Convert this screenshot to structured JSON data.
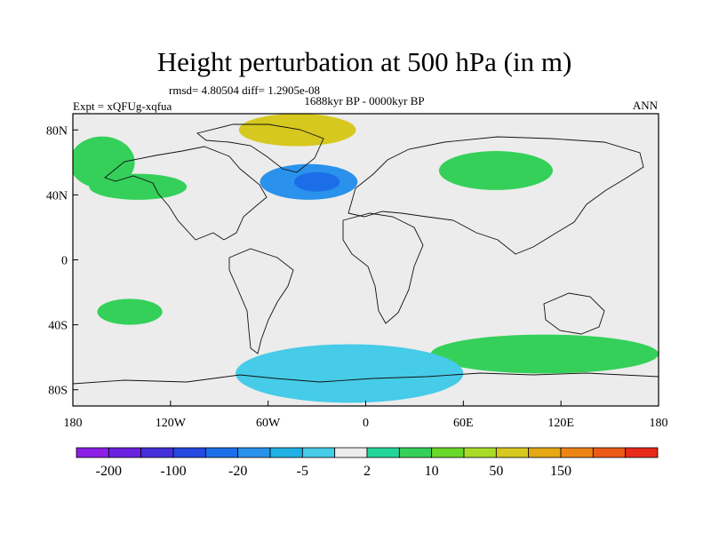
{
  "chart_data": {
    "type": "heatmap",
    "title": "Height perturbation at 500 hPa (in m)",
    "stats_label": "rmsd= 4.80504 diff= 1.2905e-08",
    "period_label": "1688kyr BP - 0000kyr BP",
    "experiment_label": "Expt = xQFUg-xqfua",
    "season_label": "ANN",
    "x_range": [
      -180,
      180
    ],
    "y_range": [
      -90,
      90
    ],
    "x_ticks": [
      {
        "value": -180,
        "label": "180"
      },
      {
        "value": -120,
        "label": "120W"
      },
      {
        "value": -60,
        "label": "60W"
      },
      {
        "value": 0,
        "label": "0"
      },
      {
        "value": 60,
        "label": "60E"
      },
      {
        "value": 120,
        "label": "120E"
      },
      {
        "value": 180,
        "label": "180"
      }
    ],
    "y_ticks": [
      {
        "value": 80,
        "label": "80N"
      },
      {
        "value": 40,
        "label": "40N"
      },
      {
        "value": 0,
        "label": "0"
      },
      {
        "value": -40,
        "label": "40S"
      },
      {
        "value": -80,
        "label": "80S"
      }
    ],
    "colorbar": {
      "colors": [
        "#8c1ee8",
        "#6a22e0",
        "#4530da",
        "#2549e0",
        "#1b6ee8",
        "#2a92ec",
        "#1fb0e4",
        "#46cbe8",
        "#ececec",
        "#22d69a",
        "#35d05a",
        "#6ad82a",
        "#a8dc28",
        "#d6c81e",
        "#e6a814",
        "#ec8416",
        "#ec5a16",
        "#e82a1a"
      ],
      "labels": [
        {
          "boundary": 1,
          "text": "-200"
        },
        {
          "boundary": 3,
          "text": "-100"
        },
        {
          "boundary": 5,
          "text": "-20"
        },
        {
          "boundary": 7,
          "text": "-5"
        },
        {
          "boundary": 9,
          "text": "2"
        },
        {
          "boundary": 11,
          "text": "10"
        },
        {
          "boundary": 13,
          "text": "50"
        },
        {
          "boundary": 15,
          "text": "150"
        }
      ]
    },
    "regions": [
      {
        "name": "North Atlantic negative anomaly",
        "lon": -35,
        "lat": 48,
        "rx": 30,
        "ry": 11,
        "level": 5
      },
      {
        "name": "North Atlantic negative core",
        "lon": -30,
        "lat": 48,
        "rx": 14,
        "ry": 6,
        "level": 4
      },
      {
        "name": "North Pacific positive anomaly",
        "lon": -162,
        "lat": 60,
        "rx": 20,
        "ry": 16,
        "level": 10
      },
      {
        "name": "Greenland positive anomaly",
        "lon": -42,
        "lat": 80,
        "rx": 36,
        "ry": 10,
        "level": 13
      },
      {
        "name": "East Pacific positive anomaly",
        "lon": -140,
        "lat": 45,
        "rx": 30,
        "ry": 8,
        "level": 10
      },
      {
        "name": "Siberia positive anomaly",
        "lon": 80,
        "lat": 55,
        "rx": 35,
        "ry": 12,
        "level": 10
      },
      {
        "name": "Southern Ocean positive band",
        "lon": 110,
        "lat": -58,
        "rx": 70,
        "ry": 12,
        "level": 10
      },
      {
        "name": "Antarctic negative anomaly",
        "lon": -10,
        "lat": -70,
        "rx": 70,
        "ry": 18,
        "level": 7
      },
      {
        "name": "South Pacific positive anomaly",
        "lon": -145,
        "lat": -32,
        "rx": 20,
        "ry": 8,
        "level": 10
      }
    ]
  }
}
